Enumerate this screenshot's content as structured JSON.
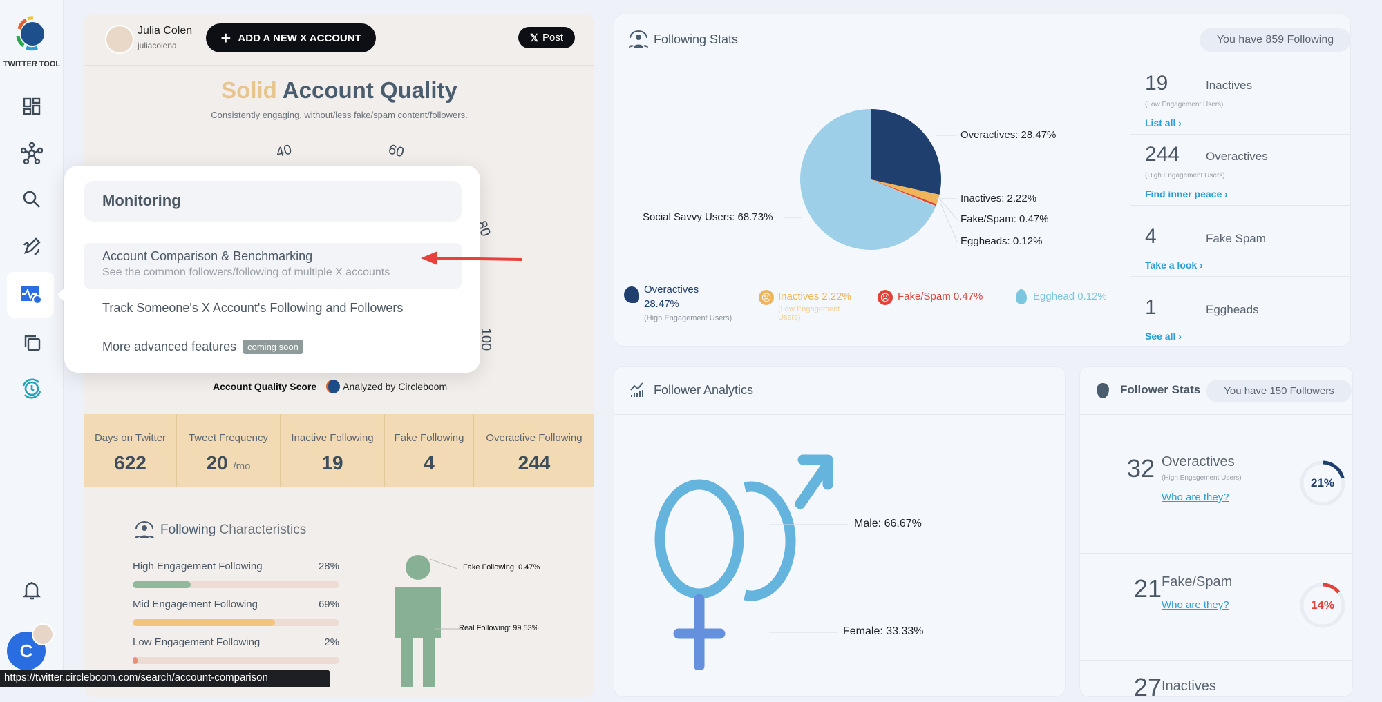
{
  "sidebar": {
    "brand": "TWITTER TOOL",
    "items": [
      "dashboard-icon",
      "network-icon",
      "search-icon",
      "edit-icon",
      "monitoring-icon",
      "copy-icon",
      "history-icon"
    ],
    "active": "monitoring-icon",
    "avatar_letter": "C"
  },
  "profile": {
    "name": "Julia Colen",
    "handle": "juliacolena",
    "add_account": "ADD A NEW X ACCOUNT",
    "post": "Post"
  },
  "quality": {
    "title_accent": "Solid",
    "title_rest": "Account Quality",
    "subtitle": "Consistently engaging, without/less fake/spam content/followers.",
    "gauge_labels": [
      "40",
      "60",
      "80",
      "100"
    ],
    "score_label": "Account Quality Score",
    "analyzed_by": "Analyzed by Circleboom"
  },
  "popup": {
    "heading": "Monitoring",
    "items": [
      {
        "title": "Account Comparison & Benchmarking",
        "subtitle": "See the common followers/following of multiple X accounts"
      },
      {
        "title": "Track Someone's X Account's Following and Followers"
      },
      {
        "title": "More advanced features",
        "badge": "coming soon"
      }
    ]
  },
  "stats": [
    {
      "label": "Days on Twitter",
      "value": "622"
    },
    {
      "label": "Tweet Frequency",
      "value": "20",
      "unit": "/mo"
    },
    {
      "label": "Inactive Following",
      "value": "19"
    },
    {
      "label": "Fake Following",
      "value": "4"
    },
    {
      "label": "Overactive Following",
      "value": "244"
    }
  ],
  "characteristics": {
    "title_a": "Following",
    "title_b": "Characteristics",
    "bars": [
      {
        "label": "High Engagement Following",
        "pct": "28%",
        "value": 28,
        "color": "#8fb99a"
      },
      {
        "label": "Mid Engagement Following",
        "pct": "69%",
        "value": 69,
        "color": "#f2c57c"
      },
      {
        "label": "Low Engagement Following",
        "pct": "2%",
        "value": 2,
        "color": "#e8907a"
      }
    ],
    "fake_label": "Fake Following: 0.47%",
    "real_label": "Real Following: 99.53%"
  },
  "status_url": "https://twitter.circleboom.com/search/account-comparison",
  "following_stats": {
    "title": "Following Stats",
    "badge": "You have 859 Following",
    "rows": [
      {
        "num": "19",
        "label": "Inactives",
        "sub": "(Low Engagement Users)",
        "link": "List all ›"
      },
      {
        "num": "244",
        "label": "Overactives",
        "sub": "(High Engagement Users)",
        "link": "Find inner peace ›"
      },
      {
        "num": "4",
        "label": "Fake Spam",
        "link": "Take a look ›"
      },
      {
        "num": "1",
        "label": "Eggheads",
        "link": "See all ›"
      }
    ],
    "legend": [
      {
        "label": "Overactives",
        "value": "28.47%",
        "sub": "(High Engagement Users)",
        "color": "#1f3f6e"
      },
      {
        "label": "Inactives 2.22%",
        "sub": "(Low Engagement Users)",
        "color": "#f0b45a"
      },
      {
        "label": "Fake/Spam 0.47%",
        "color": "#e0433a"
      },
      {
        "label": "Egghead 0.12%",
        "color": "#7cc6e0"
      }
    ]
  },
  "chart_data": {
    "type": "pie",
    "slices": [
      {
        "name": "Overactives",
        "value": 28.47,
        "label": "Overactives: 28.47%",
        "color": "#1f3f6e"
      },
      {
        "name": "Inactives",
        "value": 2.22,
        "label": "Inactives: 2.22%",
        "color": "#f0b45a"
      },
      {
        "name": "Fake/Spam",
        "value": 0.47,
        "label": "Fake/Spam: 0.47%",
        "color": "#e0433a"
      },
      {
        "name": "Eggheads",
        "value": 0.12,
        "label": "Eggheads: 0.12%",
        "color": "#eadfd2"
      },
      {
        "name": "Social Savvy Users",
        "value": 68.73,
        "label": "Social Savvy Users: 68.73%",
        "color": "#9dd0e8"
      }
    ]
  },
  "follower_analytics": {
    "title": "Follower Analytics",
    "male": "Male: 66.67%",
    "female": "Female: 33.33%",
    "male_value": 66.67,
    "female_value": 33.33
  },
  "follower_stats": {
    "title": "Follower Stats",
    "badge": "You have 150 Followers",
    "rows": [
      {
        "num": "32",
        "label": "Overactives",
        "sub": "(High Engagement Users)",
        "link": "Who are they?",
        "pct": "21%",
        "value": 21,
        "color": "#1f3f6e"
      },
      {
        "num": "21",
        "label": "Fake/Spam",
        "link": "Who are they?",
        "pct": "14%",
        "value": 14,
        "color": "#e0433a"
      },
      {
        "num": "27",
        "label": "Inactives"
      }
    ]
  }
}
